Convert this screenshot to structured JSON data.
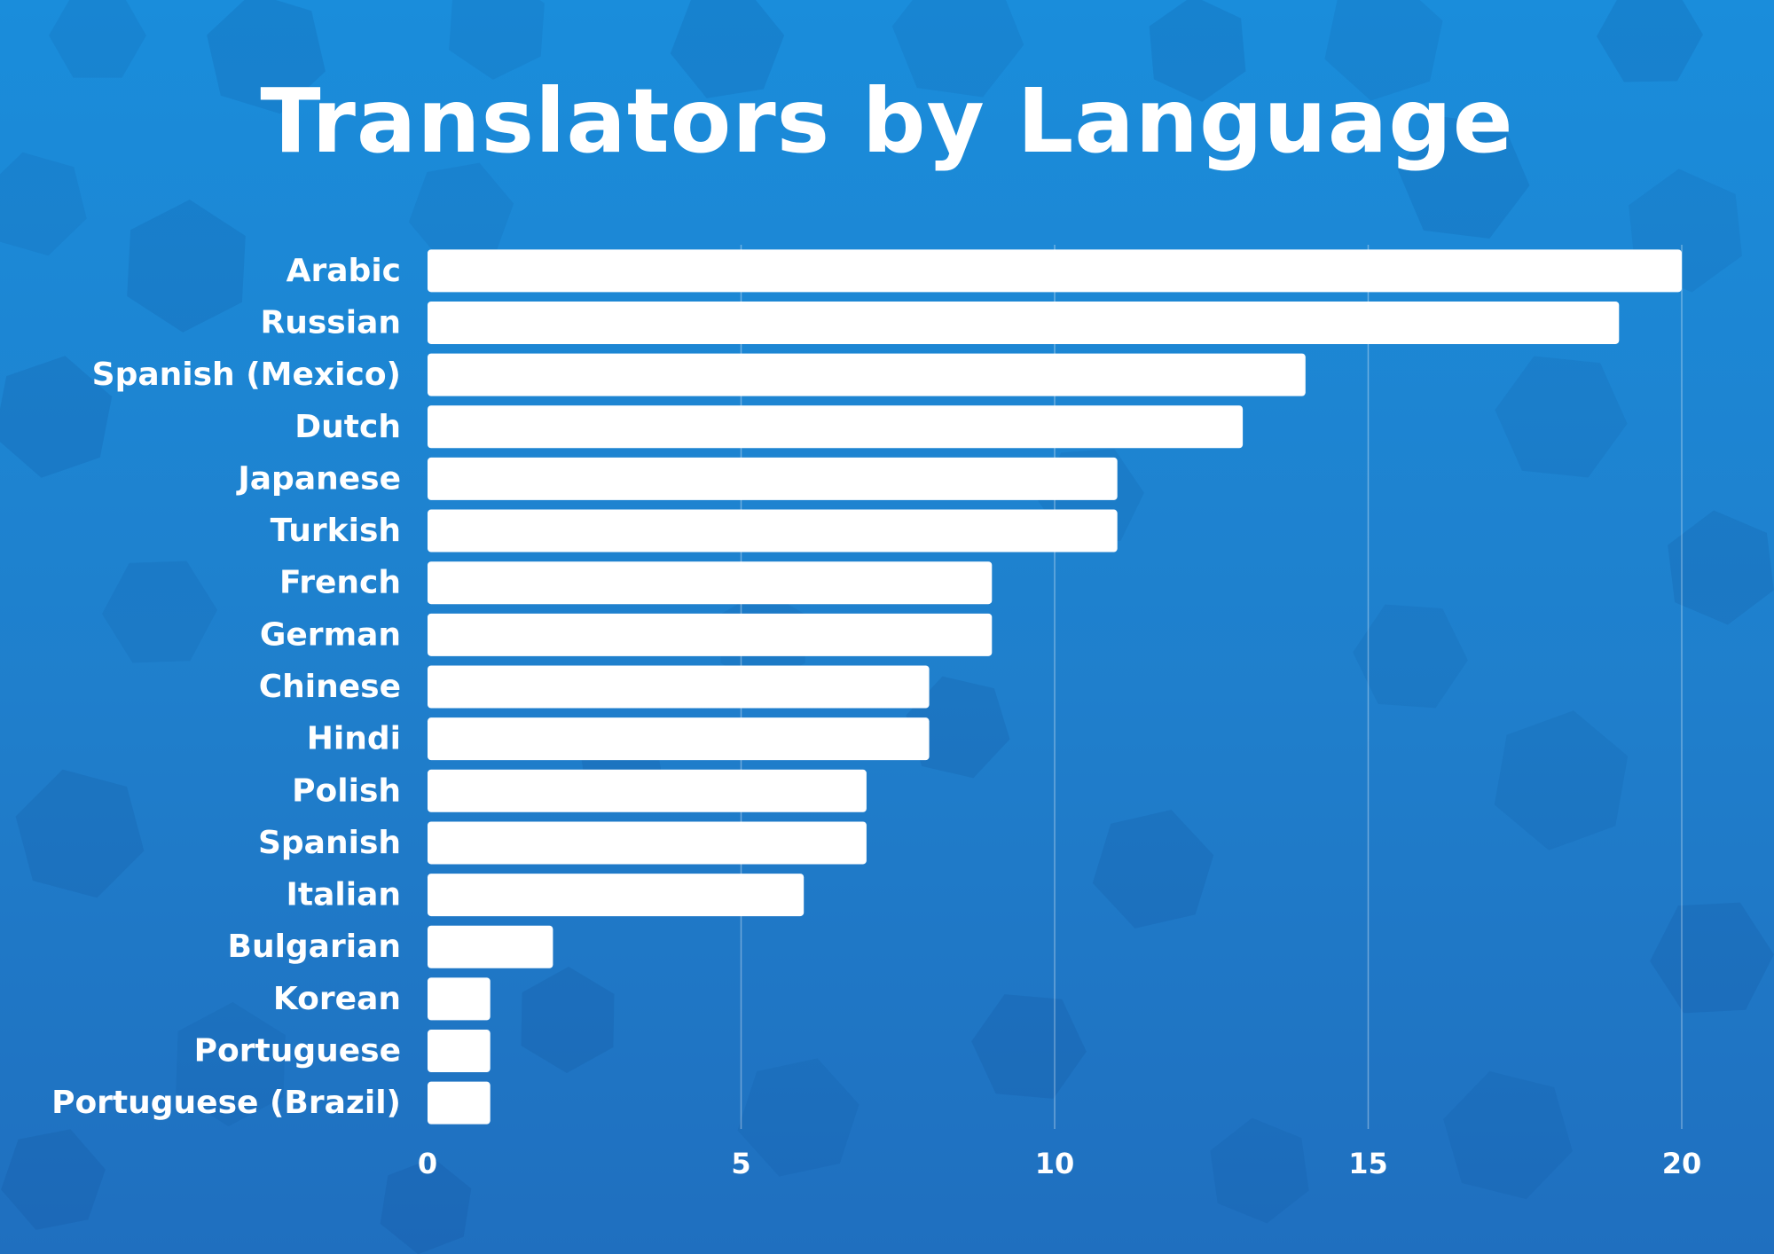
{
  "chart_data": {
    "type": "bar",
    "orientation": "horizontal",
    "title": "Translators by Language",
    "xlabel": "",
    "ylabel": "",
    "xlim": [
      0,
      20
    ],
    "xticks": [
      "0",
      "5",
      "10",
      "15",
      "20"
    ],
    "grid": true,
    "categories": [
      "Arabic",
      "Russian",
      "Spanish (Mexico)",
      "Dutch",
      "Japanese",
      "Turkish",
      "French",
      "German",
      "Chinese",
      "Hindi",
      "Polish",
      "Spanish",
      "Italian",
      "Bulgarian",
      "Korean",
      "Portuguese",
      "Portuguese (Brazil)"
    ],
    "values": [
      20,
      19,
      14,
      13,
      11,
      11,
      9,
      9,
      8,
      8,
      7,
      7,
      6,
      2,
      1,
      1,
      1
    ]
  },
  "colors": {
    "background": "#1f7fcc",
    "bar": "#ffffff",
    "text": "#ffffff"
  }
}
